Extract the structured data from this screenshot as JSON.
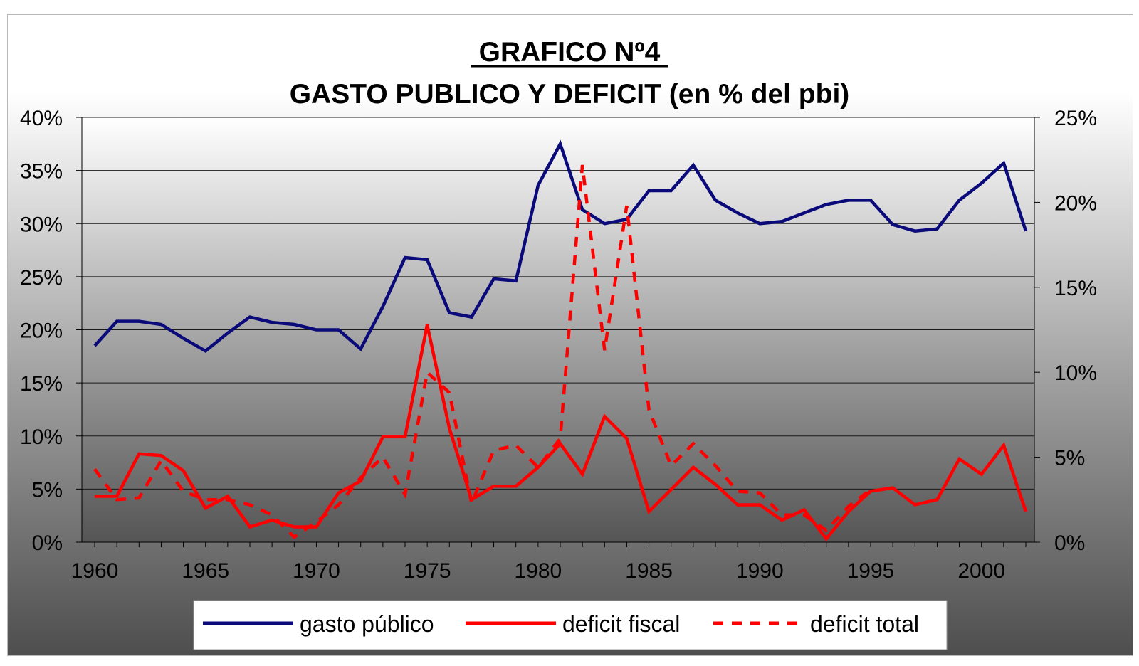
{
  "chart_data": {
    "type": "line",
    "title": "GRAFICO Nº4",
    "subtitle": "GASTO PUBLICO Y DEFICIT (en % del pbi)",
    "x": [
      1960,
      1961,
      1962,
      1963,
      1964,
      1965,
      1966,
      1967,
      1968,
      1969,
      1970,
      1971,
      1972,
      1973,
      1974,
      1975,
      1976,
      1977,
      1978,
      1979,
      1980,
      1981,
      1982,
      1983,
      1984,
      1985,
      1986,
      1987,
      1988,
      1989,
      1990,
      1991,
      1992,
      1993,
      1994,
      1995,
      1996,
      1997,
      1998,
      1999,
      2000,
      2001,
      2002
    ],
    "xticks": [
      "1960",
      "1965",
      "1970",
      "1975",
      "1980",
      "1985",
      "1990",
      "1995",
      "2000"
    ],
    "y_left_ticks": [
      "0%",
      "5%",
      "10%",
      "15%",
      "20%",
      "25%",
      "30%",
      "35%",
      "40%"
    ],
    "y_right_ticks": [
      "0%",
      "5%",
      "10%",
      "15%",
      "20%",
      "25%"
    ],
    "ylim_left": [
      0,
      40
    ],
    "ylim_right": [
      0,
      25
    ],
    "grid": true,
    "legend_position": "bottom",
    "series": [
      {
        "name": "gasto público",
        "axis": "left",
        "color": "#0a0a7a",
        "style": "solid",
        "values": [
          18.5,
          20.8,
          20.8,
          20.5,
          19.2,
          18.0,
          19.7,
          21.2,
          20.7,
          20.5,
          20.0,
          20.0,
          18.2,
          22.2,
          26.8,
          26.6,
          21.6,
          21.2,
          24.8,
          24.6,
          33.6,
          37.5,
          31.3,
          30.0,
          30.4,
          33.1,
          33.1,
          35.5,
          32.2,
          31.0,
          30.0,
          30.2,
          31.0,
          31.8,
          32.2,
          32.2,
          29.9,
          29.3,
          29.5,
          32.2,
          33.8,
          35.7,
          29.3
        ]
      },
      {
        "name": "deficit fiscal",
        "axis": "right",
        "color": "#ff0000",
        "style": "solid",
        "values": [
          2.7,
          2.7,
          5.2,
          5.1,
          4.2,
          2.0,
          2.7,
          0.9,
          1.3,
          0.9,
          0.9,
          2.9,
          3.6,
          6.2,
          6.2,
          12.8,
          6.7,
          2.5,
          3.3,
          3.3,
          4.4,
          5.8,
          4.0,
          7.4,
          6.1,
          1.8,
          3.1,
          4.4,
          3.4,
          2.2,
          2.2,
          1.3,
          1.9,
          0.2,
          1.8,
          3.0,
          3.2,
          2.2,
          2.5,
          4.9,
          4.0,
          5.7,
          1.8
        ]
      },
      {
        "name": "deficit total",
        "axis": "right",
        "color": "#ff0000",
        "style": "dashed",
        "values": [
          4.3,
          2.5,
          2.6,
          4.8,
          3.0,
          2.5,
          2.5,
          2.2,
          1.6,
          0.3,
          1.2,
          2.2,
          3.8,
          5.0,
          2.8,
          10.0,
          8.8,
          2.3,
          5.4,
          5.7,
          4.4,
          6.1,
          22.2,
          11.3,
          19.8,
          7.8,
          4.5,
          5.8,
          4.5,
          3.0,
          2.9,
          1.6,
          1.6,
          0.7,
          2.1,
          3.1,
          null,
          null,
          null,
          null,
          null,
          null,
          null
        ]
      }
    ]
  }
}
